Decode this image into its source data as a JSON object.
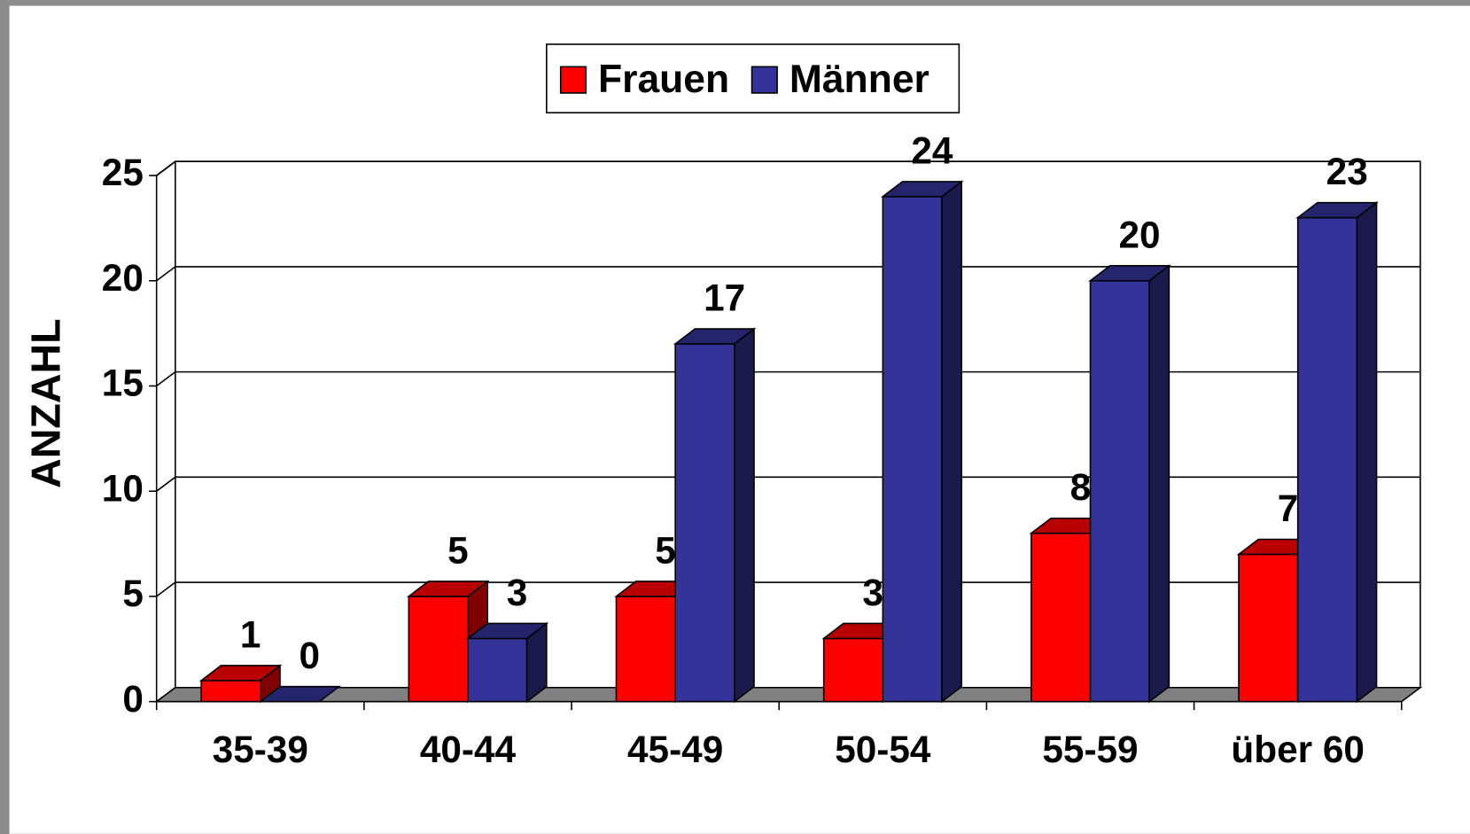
{
  "chart_data": {
    "type": "bar3d",
    "categories": [
      "35-39",
      "40-44",
      "45-49",
      "50-54",
      "55-59",
      "über 60"
    ],
    "series": [
      {
        "name": "Frauen",
        "color": "#ff0000",
        "values": [
          1,
          5,
          5,
          3,
          8,
          7
        ]
      },
      {
        "name": "Männer",
        "color": "#333399",
        "values": [
          0,
          3,
          17,
          24,
          20,
          23
        ]
      }
    ],
    "ylabel": "ANZAHL",
    "ylim": [
      0,
      25
    ],
    "yticks": [
      0,
      5,
      10,
      15,
      20,
      25
    ],
    "grid": true,
    "legend": "top"
  }
}
